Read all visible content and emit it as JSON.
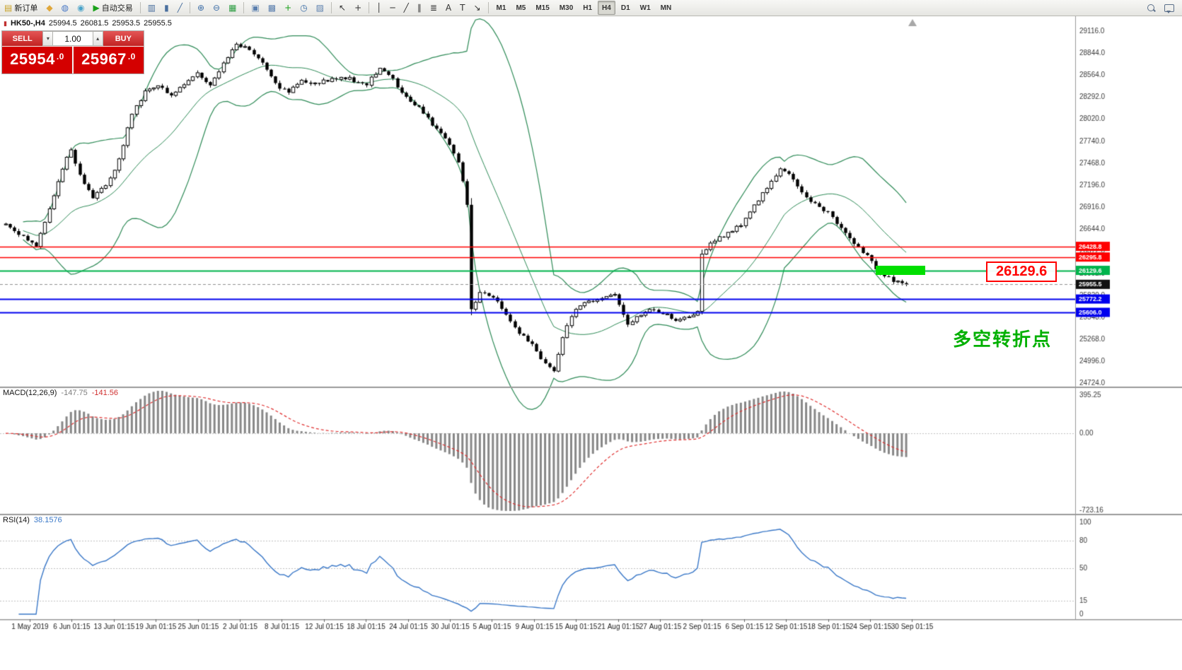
{
  "toolbar": {
    "items": [
      {
        "name": "new-order-button",
        "glyph": "▤",
        "glyph_color": "#c9a227",
        "label": "新订单"
      },
      {
        "name": "chart-window-button",
        "glyph": "◆",
        "glyph_color": "#e0a73a"
      },
      {
        "name": "profiles-button",
        "glyph": "◍",
        "glyph_color": "#4a79c6"
      },
      {
        "name": "data-window-button",
        "glyph": "◉",
        "glyph_color": "#4aa3c9"
      },
      {
        "name": "autotrading-button",
        "glyph": "▶",
        "glyph_color": "#19a119",
        "label": "自动交易"
      },
      {
        "type": "sep"
      },
      {
        "name": "bar-chart-button",
        "glyph": "▥",
        "glyph_color": "#4a6f9e"
      },
      {
        "name": "candlestick-chart-button",
        "glyph": "▮",
        "glyph_color": "#4a6f9e"
      },
      {
        "name": "line-chart-button",
        "glyph": "╱",
        "glyph_color": "#4a6f9e"
      },
      {
        "type": "sep"
      },
      {
        "name": "zoom-in-button",
        "glyph": "⊕",
        "glyph_color": "#3e6fa8"
      },
      {
        "name": "zoom-out-button",
        "glyph": "⊖",
        "glyph_color": "#3e6fa8"
      },
      {
        "name": "auto-arrange-button",
        "glyph": "▦",
        "glyph_color": "#2f9e44"
      },
      {
        "type": "sep"
      },
      {
        "name": "tile-windows-button",
        "glyph": "▣",
        "glyph_color": "#5b7fae"
      },
      {
        "name": "cascade-windows-button",
        "glyph": "▩",
        "glyph_color": "#5b7fae"
      },
      {
        "name": "new-chart-button",
        "glyph": "+",
        "glyph_color": "#18a018"
      },
      {
        "name": "period-button",
        "glyph": "◷",
        "glyph_color": "#3e6fa8"
      },
      {
        "name": "chart-properties-button",
        "glyph": "▨",
        "glyph_color": "#5b7fae"
      },
      {
        "type": "sep"
      },
      {
        "name": "cursor-button",
        "glyph": "↖",
        "glyph_color": "#333333"
      },
      {
        "name": "crosshair-button",
        "glyph": "+",
        "glyph_color": "#333333"
      },
      {
        "type": "sep"
      },
      {
        "name": "vertical-line-button",
        "glyph": "│",
        "glyph_color": "#333333"
      },
      {
        "name": "horizontal-line-button",
        "glyph": "─",
        "glyph_color": "#333333"
      },
      {
        "name": "trendline-button",
        "glyph": "╱",
        "glyph_color": "#333333"
      },
      {
        "name": "channel-button",
        "glyph": "∥",
        "glyph_color": "#333333"
      },
      {
        "name": "fibonacci-button",
        "glyph": "≣",
        "glyph_color": "#333333"
      },
      {
        "name": "text-button",
        "glyph": "A",
        "glyph_color": "#333333"
      },
      {
        "name": "label-button",
        "glyph": "T",
        "glyph_color": "#333333"
      },
      {
        "name": "arrows-button",
        "glyph": "↘",
        "glyph_color": "#333333"
      },
      {
        "type": "sep"
      },
      {
        "type": "tf",
        "name": "timeframe-m1",
        "label": "M1"
      },
      {
        "type": "tf",
        "name": "timeframe-m5",
        "label": "M5"
      },
      {
        "type": "tf",
        "name": "timeframe-m15",
        "label": "M15"
      },
      {
        "type": "tf",
        "name": "timeframe-m30",
        "label": "M30"
      },
      {
        "type": "tf",
        "name": "timeframe-h1",
        "label": "H1"
      },
      {
        "type": "tf",
        "name": "timeframe-h4",
        "label": "H4",
        "active": true
      },
      {
        "type": "tf",
        "name": "timeframe-d1",
        "label": "D1"
      },
      {
        "type": "tf",
        "name": "timeframe-w1",
        "label": "W1"
      },
      {
        "type": "tf",
        "name": "timeframe-mn",
        "label": "MN"
      }
    ],
    "right_items": [
      {
        "name": "search-button",
        "shape": "search"
      },
      {
        "name": "chat-button",
        "shape": "chat"
      }
    ]
  },
  "trade_panel": {
    "sell_label": "SELL",
    "buy_label": "BUY",
    "volume": "1.00",
    "vol_down_glyph": "▾",
    "vol_up_glyph": "▴",
    "sell_price_main": "25954",
    "sell_price_dec": ".0",
    "buy_price_main": "25967",
    "buy_price_dec": ".0"
  },
  "indicators": {
    "macd": {
      "label": "MACD(12,26,9)",
      "value1": "-147.75",
      "value2": "-141.56",
      "axis_labels": [
        "395.25",
        "0.00",
        "-723.16"
      ]
    },
    "rsi": {
      "label": "RSI(14)",
      "value": "38.1576",
      "axis_labels": [
        100,
        80,
        50,
        15,
        0
      ],
      "level_lines": [
        80,
        50,
        15
      ]
    }
  },
  "annotations": {
    "callout": "26129.6",
    "turning_point": "多空转折点"
  },
  "chart_data": {
    "type": "candlestick",
    "symbol_icon": "▮",
    "symbol_period": "HK50-,H4",
    "current_ohlc": {
      "open": "25994.5",
      "high": "26081.5",
      "low": "25953.5",
      "close": "25955.5"
    },
    "candle_count": 208,
    "price_anchors": [
      [
        0,
        26700
      ],
      [
        4,
        26550
      ],
      [
        7,
        26420
      ],
      [
        10,
        26900
      ],
      [
        13,
        27400
      ],
      [
        15,
        27650
      ],
      [
        17,
        27300
      ],
      [
        20,
        27050
      ],
      [
        23,
        27200
      ],
      [
        26,
        27500
      ],
      [
        29,
        28100
      ],
      [
        32,
        28350
      ],
      [
        35,
        28450
      ],
      [
        38,
        28300
      ],
      [
        41,
        28450
      ],
      [
        44,
        28600
      ],
      [
        47,
        28450
      ],
      [
        50,
        28700
      ],
      [
        53,
        28950
      ],
      [
        56,
        28900
      ],
      [
        59,
        28700
      ],
      [
        62,
        28450
      ],
      [
        65,
        28350
      ],
      [
        68,
        28500
      ],
      [
        71,
        28450
      ],
      [
        74,
        28500
      ],
      [
        77,
        28550
      ],
      [
        80,
        28500
      ],
      [
        83,
        28450
      ],
      [
        86,
        28650
      ],
      [
        89,
        28500
      ],
      [
        92,
        28300
      ],
      [
        95,
        28150
      ],
      [
        98,
        27950
      ],
      [
        101,
        27800
      ],
      [
        104,
        27500
      ],
      [
        106,
        26950
      ],
      [
        107,
        25650
      ],
      [
        109,
        25850
      ],
      [
        112,
        25800
      ],
      [
        115,
        25600
      ],
      [
        118,
        25350
      ],
      [
        121,
        25200
      ],
      [
        124,
        24950
      ],
      [
        126,
        24870
      ],
      [
        128,
        25300
      ],
      [
        131,
        25650
      ],
      [
        134,
        25750
      ],
      [
        137,
        25800
      ],
      [
        140,
        25850
      ],
      [
        143,
        25450
      ],
      [
        145,
        25550
      ],
      [
        148,
        25650
      ],
      [
        151,
        25600
      ],
      [
        154,
        25500
      ],
      [
        157,
        25550
      ],
      [
        159,
        25600
      ],
      [
        160,
        26350
      ],
      [
        163,
        26500
      ],
      [
        166,
        26600
      ],
      [
        169,
        26700
      ],
      [
        172,
        26950
      ],
      [
        175,
        27150
      ],
      [
        178,
        27400
      ],
      [
        180,
        27350
      ],
      [
        183,
        27100
      ],
      [
        186,
        26950
      ],
      [
        189,
        26850
      ],
      [
        192,
        26650
      ],
      [
        195,
        26450
      ],
      [
        198,
        26300
      ],
      [
        201,
        26100
      ],
      [
        204,
        26000
      ],
      [
        207,
        25955
      ]
    ],
    "bollinger": {
      "period": 20,
      "deviation": 2
    },
    "y_axis": {
      "labels": [
        "29116.0",
        "28844.0",
        "28564.0",
        "28292.0",
        "28020.0",
        "27740.0",
        "27468.0",
        "27196.0",
        "26916.0",
        "26644.0",
        "26372.0",
        "26092.0",
        "25820.0",
        "25548.0",
        "25268.0",
        "24996.0",
        "24724.0"
      ]
    },
    "levels": [
      {
        "price": 26428.8,
        "tag": "26428.8",
        "color": "#ff0000",
        "width": 1.6,
        "style": "solid"
      },
      {
        "price": 26295.8,
        "tag": "26295.8",
        "color": "#ff0000",
        "width": 1.6,
        "style": "solid"
      },
      {
        "price": 26129.6,
        "tag": "26129.6",
        "color": "#00b44c",
        "width": 1.8,
        "style": "solid"
      },
      {
        "price": 25955.5,
        "tag": "25955.5",
        "color": "#111111",
        "line_color": "#909090",
        "width": 1,
        "style": "dashed"
      },
      {
        "price": 25772.2,
        "tag": "25772.2",
        "color": "#0000ee",
        "width": 2,
        "style": "solid"
      },
      {
        "price": 25606.0,
        "tag": "25606.0",
        "color": "#0000ee",
        "width": 2,
        "style": "solid"
      }
    ],
    "x_labels": [
      "1 May 2019",
      "6 Jun 01:15",
      "13 Jun 01:15",
      "19 Jun 01:15",
      "25 Jun 01:15",
      "2 Jul 01:15",
      "8 Jul 01:15",
      "12 Jul 01:15",
      "18 Jul 01:15",
      "24 Jul 01:15",
      "30 Jul 01:15",
      "5 Aug 01:15",
      "9 Aug 01:15",
      "15 Aug 01:15",
      "21 Aug 01:15",
      "27 Aug 01:15",
      "2 Sep 01:15",
      "6 Sep 01:15",
      "12 Sep 01:15",
      "18 Sep 01:15",
      "24 Sep 01:15",
      "30 Sep 01:15"
    ]
  }
}
